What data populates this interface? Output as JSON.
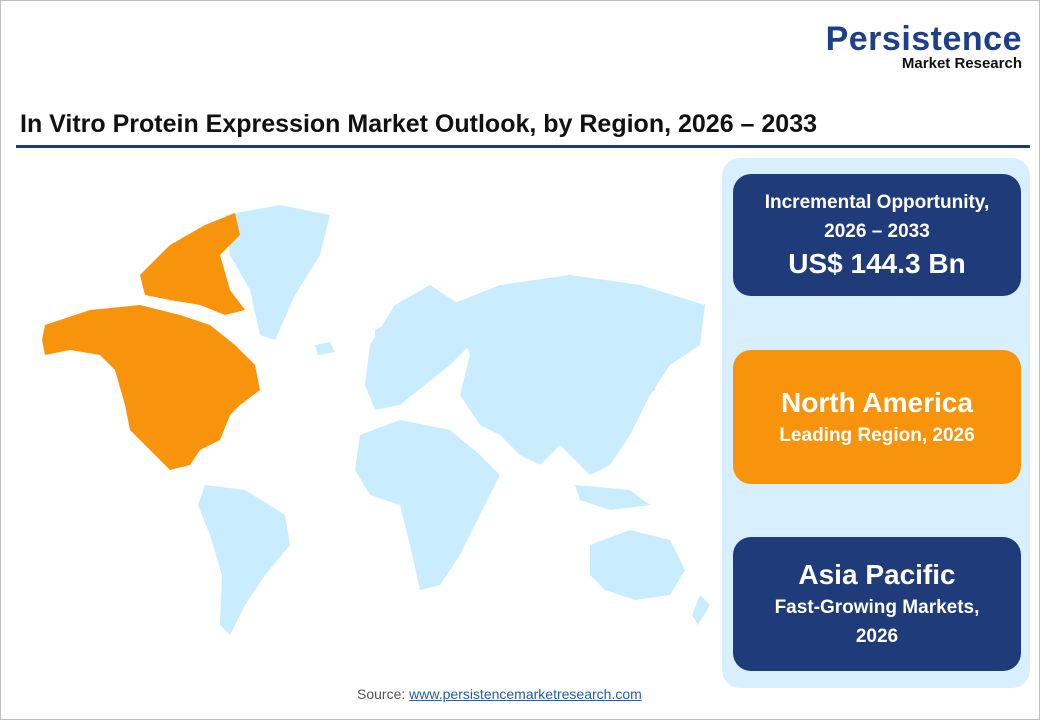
{
  "logo": {
    "brand": "Persistence",
    "sub": "Market Research"
  },
  "title": "In Vitro Protein Expression Market Outlook, by Region, 2026 – 2033",
  "map": {
    "highlighted_region": "North America",
    "highlight_color": "#f7940c",
    "base_color": "#c9ecff"
  },
  "cards": [
    {
      "line1": "Incremental Opportunity,",
      "line2": "2026 – 2033",
      "value": "US$ 144.3 Bn",
      "color": "#203b7a"
    },
    {
      "heading": "North America",
      "sub": "Leading Region, 2026",
      "color": "#f7940c"
    },
    {
      "heading": "Asia Pacific",
      "sub1": "Fast-Growing Markets,",
      "sub2": "2026",
      "color": "#203b7a"
    }
  ],
  "source": {
    "label": "Source: ",
    "link": "www.persistencemarketresearch.com"
  }
}
